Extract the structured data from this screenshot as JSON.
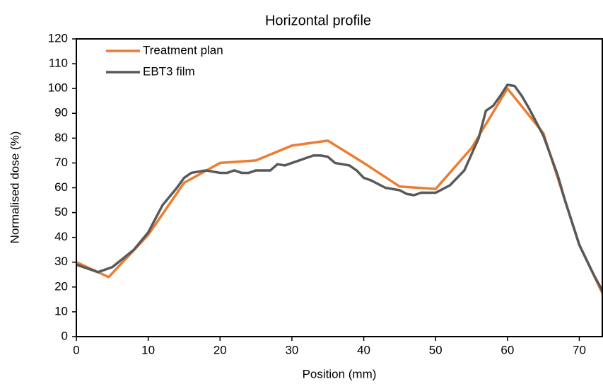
{
  "chart_data": {
    "type": "line",
    "title": "Horizontal profile",
    "x_label": "Position (mm)",
    "y_label": "Normalised dose (%)",
    "xlim": [
      0,
      73.3
    ],
    "ylim": [
      0,
      120
    ],
    "xticks": [
      0,
      10,
      20,
      30,
      40,
      50,
      60,
      70
    ],
    "yticks": [
      0,
      10,
      20,
      30,
      40,
      50,
      60,
      70,
      80,
      90,
      100,
      110,
      120
    ],
    "legend": "upper left",
    "series": [
      {
        "name": "Treatment plan",
        "color": "#ed7d31",
        "x": [
          0,
          4.5,
          10,
          15,
          20,
          25,
          30,
          35,
          40,
          45,
          50,
          55,
          60,
          65,
          70,
          73.3
        ],
        "values": [
          30,
          24,
          41,
          62,
          70,
          71,
          77,
          79,
          70,
          60.5,
          59.5,
          76,
          100,
          82,
          37,
          17
        ]
      },
      {
        "name": "EBT3 film",
        "color": "#595959",
        "x": [
          0,
          2,
          3,
          5,
          8,
          10,
          12,
          14,
          15,
          16,
          18,
          20,
          21,
          22,
          23,
          24,
          25,
          27,
          28,
          29,
          30,
          31,
          32,
          33,
          34,
          35,
          36,
          37,
          38,
          39,
          40,
          41,
          43,
          45,
          46,
          47,
          48,
          50,
          52,
          54,
          56,
          57,
          58,
          59,
          60,
          61,
          62,
          63,
          65,
          67,
          68,
          70,
          72,
          73.3
        ],
        "values": [
          29,
          27,
          26,
          28,
          35,
          42,
          53,
          60,
          64,
          66,
          67,
          66,
          66,
          67,
          66,
          66,
          67,
          67,
          69.5,
          69,
          70,
          71,
          72,
          73,
          73,
          72.5,
          70,
          69.5,
          69,
          67,
          64,
          63,
          60,
          59,
          57.5,
          57,
          58,
          58,
          61,
          67,
          80,
          91,
          93,
          97,
          101.5,
          101,
          97,
          92,
          81,
          65,
          55,
          37,
          25,
          18
        ]
      }
    ]
  }
}
